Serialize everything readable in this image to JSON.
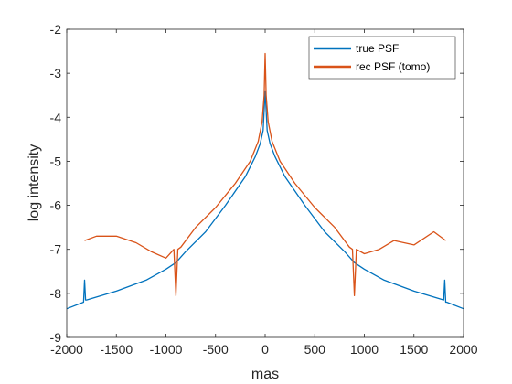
{
  "chart_data": {
    "type": "line",
    "title": "",
    "xlabel": "mas",
    "ylabel": "log intensity",
    "xlim": [
      -2000,
      2000
    ],
    "ylim": [
      -9,
      -2
    ],
    "xticks": [
      -2000,
      -1500,
      -1000,
      -500,
      0,
      500,
      1000,
      1500,
      2000
    ],
    "xtick_labels": [
      "-2000",
      "-1500",
      "-1000",
      "-500",
      "0",
      "500",
      "1000",
      "1500",
      "2000"
    ],
    "yticks": [
      -9,
      -8,
      -7,
      -6,
      -5,
      -4,
      -3,
      -2
    ],
    "ytick_labels": [
      "-9",
      "-8",
      "-7",
      "-6",
      "-5",
      "-4",
      "-3",
      "-2"
    ],
    "grid": false,
    "legend_position": "top-right",
    "series": [
      {
        "name": "true PSF",
        "color": "#0072BD",
        "x": [
          -2000,
          -1830,
          -1820,
          -1810,
          -1800,
          -1500,
          -1200,
          -1000,
          -900,
          -800,
          -600,
          -400,
          -200,
          -100,
          -50,
          -20,
          0,
          20,
          50,
          100,
          200,
          400,
          600,
          800,
          900,
          1000,
          1200,
          1500,
          1800,
          1810,
          1820,
          1830,
          2000
        ],
        "y": [
          -8.35,
          -8.2,
          -7.7,
          -8.15,
          -8.15,
          -7.95,
          -7.7,
          -7.45,
          -7.3,
          -7.05,
          -6.6,
          -6.0,
          -5.35,
          -4.9,
          -4.6,
          -4.3,
          -3.4,
          -4.3,
          -4.6,
          -4.9,
          -5.35,
          -6.0,
          -6.6,
          -7.05,
          -7.3,
          -7.45,
          -7.7,
          -7.95,
          -8.15,
          -7.7,
          -8.2,
          -8.2,
          -8.35
        ]
      },
      {
        "name": "rec PSF (tomo)",
        "color": "#D95319",
        "x": [
          -1820,
          -1700,
          -1500,
          -1300,
          -1150,
          -1000,
          -920,
          -900,
          -880,
          -850,
          -700,
          -500,
          -300,
          -150,
          -70,
          -30,
          -10,
          0,
          10,
          30,
          70,
          150,
          300,
          500,
          700,
          850,
          880,
          900,
          920,
          1000,
          1150,
          1300,
          1500,
          1700,
          1820
        ],
        "y": [
          -6.8,
          -6.7,
          -6.7,
          -6.85,
          -7.05,
          -7.2,
          -7.0,
          -8.05,
          -7.0,
          -6.95,
          -6.5,
          -6.05,
          -5.5,
          -5.0,
          -4.55,
          -4.1,
          -3.5,
          -2.55,
          -3.5,
          -4.1,
          -4.55,
          -5.0,
          -5.5,
          -6.05,
          -6.5,
          -6.95,
          -7.0,
          -8.05,
          -7.0,
          -7.1,
          -7.0,
          -6.8,
          -6.9,
          -6.6,
          -6.8
        ]
      }
    ]
  }
}
